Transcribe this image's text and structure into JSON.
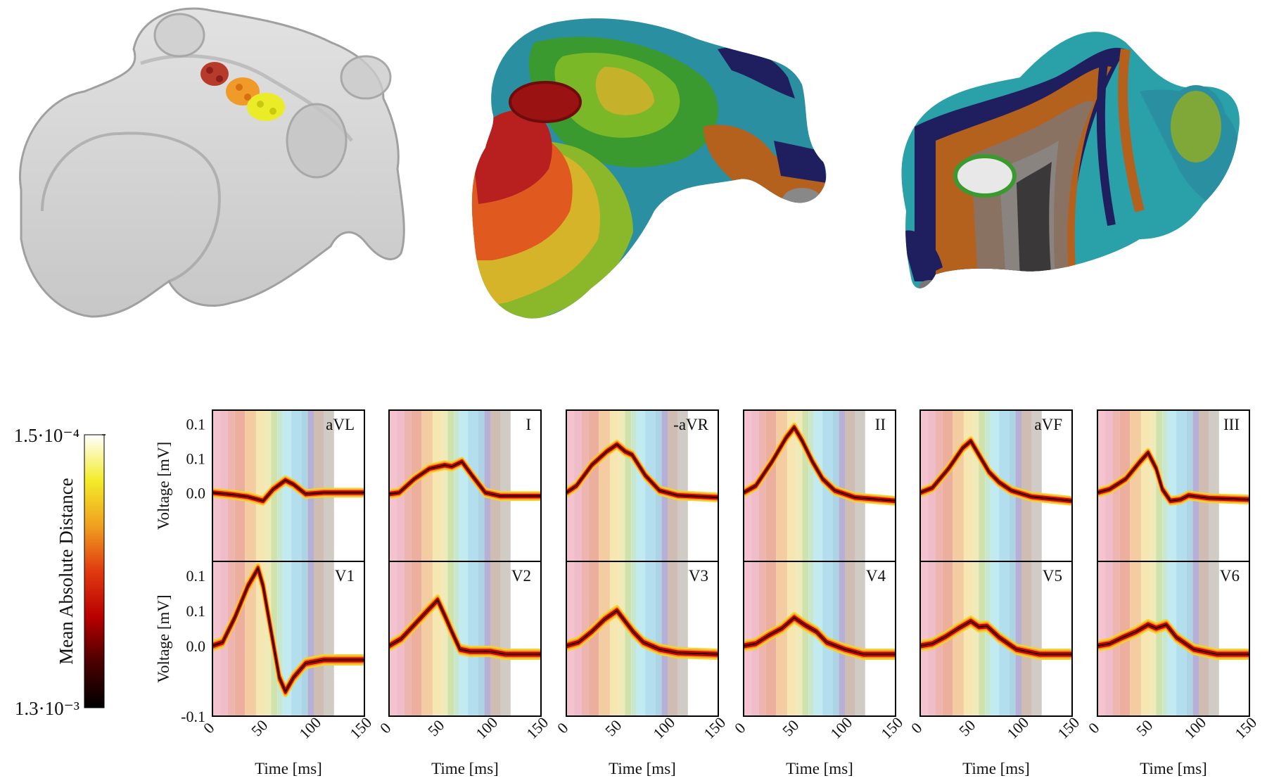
{
  "colorbar": {
    "label": "Mean Absolute Distance",
    "top_label": "1.5·10⁻⁴",
    "bottom_label": "1.3·10⁻³",
    "gradient": [
      "#ffffff",
      "#f3ec2a",
      "#f0a020",
      "#e03a10",
      "#b80000",
      "#4a0000",
      "#000000"
    ]
  },
  "band_colors": [
    "#f3b9c8",
    "#ecb0bf",
    "#eaa7a2",
    "#e9a08c",
    "#f1c390",
    "#f5e3a4",
    "#ebe6ae",
    "#c8dd9d",
    "#bde3c6",
    "#b7e6ef",
    "#a6d8ea",
    "#9fcde0",
    "#a9a1cf",
    "#c7b2a6",
    "#c9c2bb"
  ],
  "band_edges_ms": [
    0,
    8,
    15,
    22,
    32,
    43,
    52,
    58,
    64,
    69,
    78,
    88,
    94,
    100,
    110,
    120
  ],
  "ecg_colors": {
    "trace": "#000000",
    "envelope_outer": "#f4d42a",
    "envelope_mid": "#f09028",
    "envelope_inner": "#c80000"
  },
  "chart_data": {
    "type": "line",
    "xlabel": "Time [ms]",
    "ylabel": "Voltage [mV]",
    "xlim": [
      0,
      150
    ],
    "xticks": [
      "0",
      "50",
      "100",
      "150"
    ],
    "rows": [
      {
        "ylim": [
          -0.1,
          0.12
        ],
        "yticks": [
          {
            "v": 0.0,
            "t": "0.0"
          },
          {
            "v": 0.05,
            "t": "0.1"
          },
          {
            "v": 0.1,
            "t": "0.1"
          }
        ]
      },
      {
        "ylim": [
          -0.1,
          0.12
        ],
        "yticks": [
          {
            "v": -0.1,
            "t": "-0.1"
          },
          {
            "v": 0.0,
            "t": "0.0"
          },
          {
            "v": 0.05,
            "t": "0.1"
          },
          {
            "v": 0.1,
            "t": "0.1"
          }
        ]
      }
    ],
    "leads": [
      {
        "name": "aVL",
        "row": 0,
        "points": [
          [
            0,
            0.0
          ],
          [
            20,
            -0.003
          ],
          [
            35,
            -0.006
          ],
          [
            50,
            -0.012
          ],
          [
            60,
            0.005
          ],
          [
            72,
            0.018
          ],
          [
            80,
            0.012
          ],
          [
            92,
            -0.002
          ],
          [
            110,
            0.0
          ],
          [
            150,
            0.0
          ]
        ],
        "spread": 0.004
      },
      {
        "name": "I",
        "row": 0,
        "points": [
          [
            0,
            -0.002
          ],
          [
            10,
            0.0
          ],
          [
            25,
            0.02
          ],
          [
            40,
            0.035
          ],
          [
            55,
            0.04
          ],
          [
            62,
            0.038
          ],
          [
            72,
            0.045
          ],
          [
            82,
            0.025
          ],
          [
            95,
            0.0
          ],
          [
            110,
            -0.005
          ],
          [
            150,
            -0.005
          ]
        ],
        "spread": 0.004
      },
      {
        "name": "-aVR",
        "row": 0,
        "points": [
          [
            0,
            0.0
          ],
          [
            10,
            0.01
          ],
          [
            25,
            0.04
          ],
          [
            40,
            0.06
          ],
          [
            50,
            0.07
          ],
          [
            58,
            0.06
          ],
          [
            65,
            0.055
          ],
          [
            78,
            0.025
          ],
          [
            92,
            0.003
          ],
          [
            110,
            -0.004
          ],
          [
            150,
            -0.007
          ]
        ],
        "spread": 0.004
      },
      {
        "name": "II",
        "row": 0,
        "points": [
          [
            0,
            0.0
          ],
          [
            12,
            0.01
          ],
          [
            28,
            0.045
          ],
          [
            42,
            0.08
          ],
          [
            50,
            0.095
          ],
          [
            58,
            0.075
          ],
          [
            68,
            0.045
          ],
          [
            78,
            0.02
          ],
          [
            90,
            0.003
          ],
          [
            110,
            -0.007
          ],
          [
            150,
            -0.012
          ]
        ],
        "spread": 0.004
      },
      {
        "name": "aVF",
        "row": 0,
        "points": [
          [
            0,
            0.0
          ],
          [
            12,
            0.007
          ],
          [
            28,
            0.035
          ],
          [
            42,
            0.065
          ],
          [
            50,
            0.075
          ],
          [
            58,
            0.055
          ],
          [
            68,
            0.03
          ],
          [
            78,
            0.015
          ],
          [
            90,
            0.003
          ],
          [
            110,
            -0.006
          ],
          [
            150,
            -0.012
          ]
        ],
        "spread": 0.004
      },
      {
        "name": "III",
        "row": 0,
        "points": [
          [
            0,
            0.0
          ],
          [
            12,
            0.005
          ],
          [
            28,
            0.02
          ],
          [
            42,
            0.045
          ],
          [
            50,
            0.058
          ],
          [
            58,
            0.035
          ],
          [
            64,
            0.005
          ],
          [
            72,
            -0.012
          ],
          [
            82,
            -0.01
          ],
          [
            90,
            -0.004
          ],
          [
            110,
            -0.008
          ],
          [
            150,
            -0.01
          ]
        ],
        "spread": 0.004
      },
      {
        "name": "V1",
        "row": 1,
        "points": [
          [
            0,
            0.0
          ],
          [
            10,
            0.005
          ],
          [
            22,
            0.04
          ],
          [
            35,
            0.085
          ],
          [
            45,
            0.11
          ],
          [
            50,
            0.085
          ],
          [
            58,
            0.02
          ],
          [
            66,
            -0.045
          ],
          [
            72,
            -0.065
          ],
          [
            80,
            -0.045
          ],
          [
            92,
            -0.025
          ],
          [
            110,
            -0.02
          ],
          [
            150,
            -0.02
          ]
        ],
        "spread": 0.005
      },
      {
        "name": "V2",
        "row": 1,
        "points": [
          [
            0,
            0.0
          ],
          [
            12,
            0.01
          ],
          [
            25,
            0.03
          ],
          [
            38,
            0.05
          ],
          [
            48,
            0.065
          ],
          [
            56,
            0.04
          ],
          [
            62,
            0.02
          ],
          [
            70,
            -0.005
          ],
          [
            80,
            -0.008
          ],
          [
            100,
            -0.008
          ],
          [
            115,
            -0.012
          ],
          [
            150,
            -0.012
          ]
        ],
        "spread": 0.005
      },
      {
        "name": "V3",
        "row": 1,
        "points": [
          [
            0,
            0.0
          ],
          [
            12,
            0.005
          ],
          [
            25,
            0.02
          ],
          [
            38,
            0.038
          ],
          [
            50,
            0.05
          ],
          [
            58,
            0.035
          ],
          [
            66,
            0.02
          ],
          [
            76,
            0.005
          ],
          [
            92,
            -0.005
          ],
          [
            110,
            -0.01
          ],
          [
            150,
            -0.012
          ]
        ],
        "spread": 0.005
      },
      {
        "name": "V4",
        "row": 1,
        "points": [
          [
            0,
            0.0
          ],
          [
            12,
            0.003
          ],
          [
            25,
            0.015
          ],
          [
            38,
            0.025
          ],
          [
            50,
            0.04
          ],
          [
            60,
            0.03
          ],
          [
            72,
            0.02
          ],
          [
            82,
            0.005
          ],
          [
            100,
            -0.005
          ],
          [
            118,
            -0.012
          ],
          [
            150,
            -0.012
          ]
        ],
        "spread": 0.005
      },
      {
        "name": "V5",
        "row": 1,
        "points": [
          [
            0,
            0.0
          ],
          [
            12,
            0.003
          ],
          [
            25,
            0.013
          ],
          [
            38,
            0.025
          ],
          [
            50,
            0.035
          ],
          [
            58,
            0.027
          ],
          [
            66,
            0.028
          ],
          [
            78,
            0.012
          ],
          [
            95,
            -0.005
          ],
          [
            118,
            -0.012
          ],
          [
            150,
            -0.012
          ]
        ],
        "spread": 0.005
      },
      {
        "name": "V6",
        "row": 1,
        "points": [
          [
            0,
            0.0
          ],
          [
            12,
            0.003
          ],
          [
            25,
            0.012
          ],
          [
            38,
            0.02
          ],
          [
            50,
            0.03
          ],
          [
            58,
            0.025
          ],
          [
            68,
            0.03
          ],
          [
            78,
            0.012
          ],
          [
            95,
            -0.005
          ],
          [
            118,
            -0.012
          ],
          [
            150,
            -0.012
          ]
        ],
        "spread": 0.005
      }
    ]
  }
}
